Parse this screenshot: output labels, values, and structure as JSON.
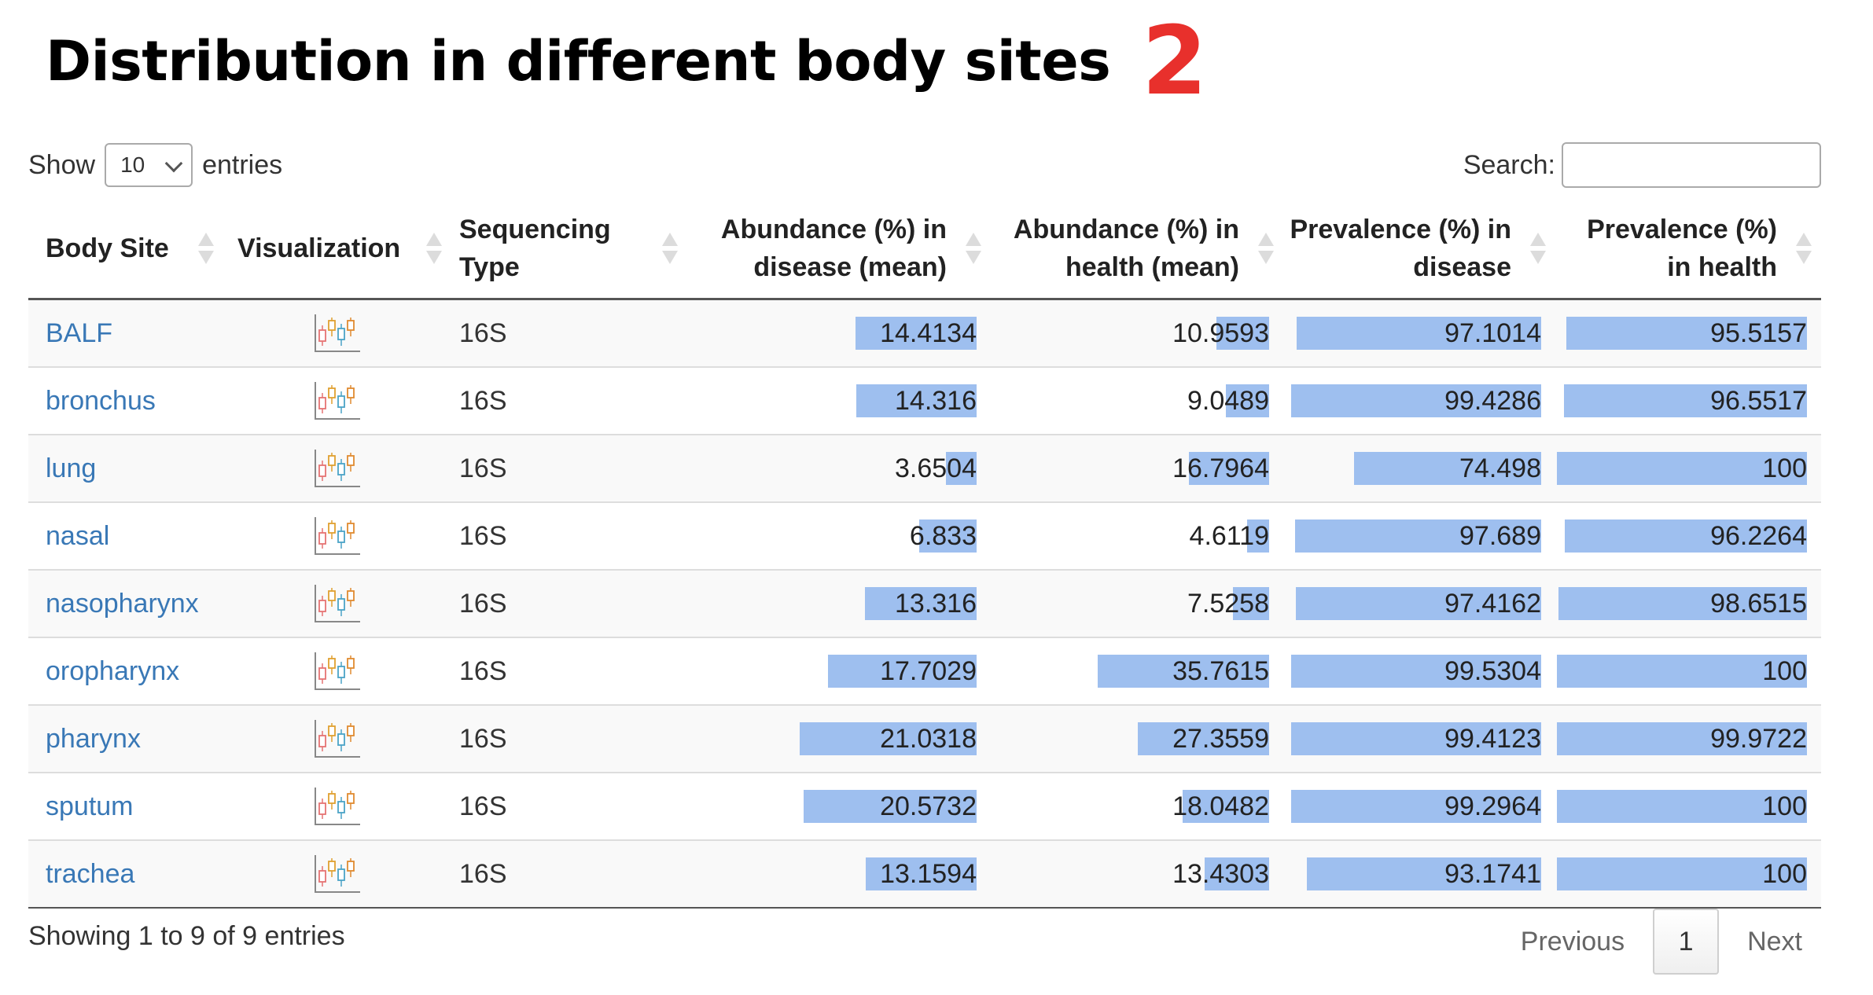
{
  "page": {
    "title": "Distribution in different body sites",
    "annotation_number": "2"
  },
  "controls": {
    "show_label": "Show",
    "page_length": "10",
    "entries_label": "entries",
    "search_label": "Search:",
    "search_value": ""
  },
  "table": {
    "columns": [
      {
        "key": "body_site",
        "label": "Body Site"
      },
      {
        "key": "visualization",
        "label": "Visualization"
      },
      {
        "key": "sequencing_type",
        "label": "Sequencing Type"
      },
      {
        "key": "abund_disease",
        "label": "Abundance (%) in disease (mean)"
      },
      {
        "key": "abund_health",
        "label": "Abundance (%) in health (mean)"
      },
      {
        "key": "prev_disease",
        "label": "Prevalence (%) in disease"
      },
      {
        "key": "prev_health",
        "label": "Prevalence (%) in health"
      }
    ],
    "rows": [
      {
        "body_site": "BALF",
        "sequencing_type": "16S",
        "abund_disease": "14.4134",
        "abund_health": "10.9593",
        "prev_disease": "97.1014",
        "prev_health": "95.5157"
      },
      {
        "body_site": "bronchus",
        "sequencing_type": "16S",
        "abund_disease": "14.316",
        "abund_health": "9.0489",
        "prev_disease": "99.4286",
        "prev_health": "96.5517"
      },
      {
        "body_site": "lung",
        "sequencing_type": "16S",
        "abund_disease": "3.6504",
        "abund_health": "16.7964",
        "prev_disease": "74.498",
        "prev_health": "100"
      },
      {
        "body_site": "nasal",
        "sequencing_type": "16S",
        "abund_disease": "6.833",
        "abund_health": "4.6119",
        "prev_disease": "97.689",
        "prev_health": "96.2264"
      },
      {
        "body_site": "nasopharynx",
        "sequencing_type": "16S",
        "abund_disease": "13.316",
        "abund_health": "7.5258",
        "prev_disease": "97.4162",
        "prev_health": "98.6515"
      },
      {
        "body_site": "oropharynx",
        "sequencing_type": "16S",
        "abund_disease": "17.7029",
        "abund_health": "35.7615",
        "prev_disease": "99.5304",
        "prev_health": "100"
      },
      {
        "body_site": "pharynx",
        "sequencing_type": "16S",
        "abund_disease": "21.0318",
        "abund_health": "27.3559",
        "prev_disease": "99.4123",
        "prev_health": "99.9722"
      },
      {
        "body_site": "sputum",
        "sequencing_type": "16S",
        "abund_disease": "20.5732",
        "abund_health": "18.0482",
        "prev_disease": "99.2964",
        "prev_health": "100"
      },
      {
        "body_site": "trachea",
        "sequencing_type": "16S",
        "abund_disease": "13.1594",
        "abund_health": "13.4303",
        "prev_disease": "93.1741",
        "prev_health": "100"
      }
    ]
  },
  "footer": {
    "info": "Showing 1 to 9 of 9 entries",
    "previous": "Previous",
    "current_page": "1",
    "next": "Next"
  },
  "colors": {
    "bar": "#9ebfef",
    "link": "#3978b6",
    "annotation": "#e8302c"
  }
}
